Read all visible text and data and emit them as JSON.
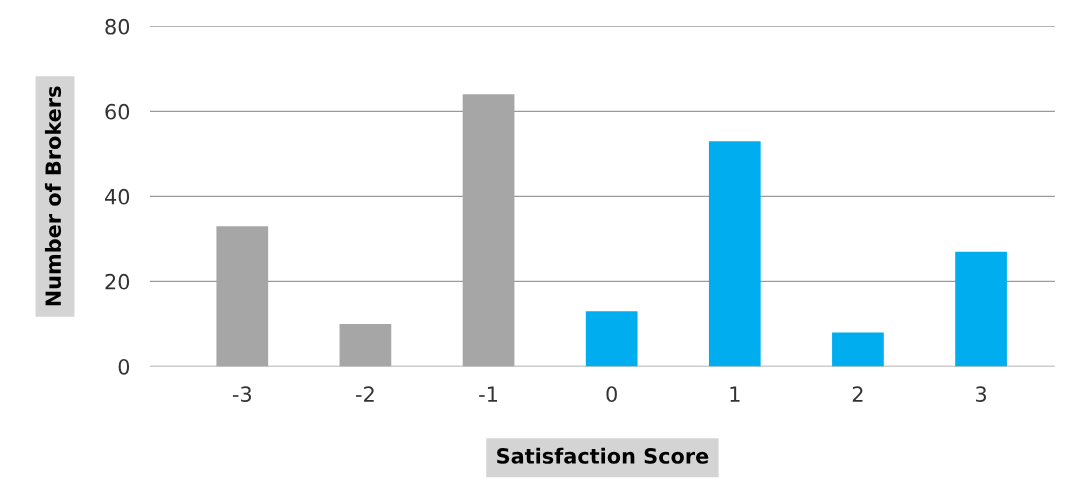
{
  "chart_data": {
    "type": "bar",
    "xlabel": "Satisfaction Score",
    "ylabel": "Number of Brokers",
    "categories": [
      "-3",
      "-2",
      "-1",
      "0",
      "1",
      "2",
      "3"
    ],
    "values": [
      33,
      10,
      64,
      13,
      53,
      8,
      27
    ],
    "colors": [
      "#a6a6a6",
      "#a6a6a6",
      "#a6a6a6",
      "#00aeef",
      "#00aeef",
      "#00aeef",
      "#00aeef"
    ],
    "ylim": [
      0,
      80
    ],
    "yticks": [
      0,
      20,
      40,
      60,
      80
    ],
    "grid": "y"
  }
}
